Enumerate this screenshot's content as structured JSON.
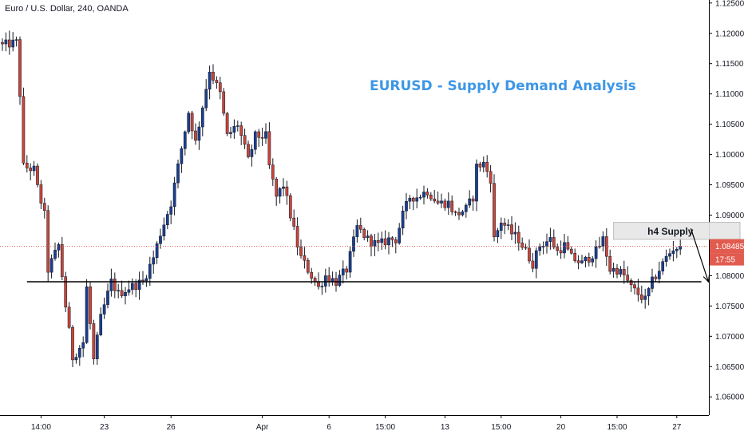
{
  "chart_data": {
    "type": "candlestick",
    "symbol": "Euro / U.S. Dollar, 240, OANDA",
    "title": "EURUSD - Supply Demand Analysis",
    "ylim": [
      1.057,
      1.1255
    ],
    "y_ticks": [
      "1.12500",
      "1.12000",
      "1.11500",
      "1.11000",
      "1.10500",
      "1.10000",
      "1.09500",
      "1.09000",
      "1.08500",
      "1.08000",
      "1.07500",
      "1.07000",
      "1.06500",
      "1.06000"
    ],
    "x_ticks": [
      {
        "label": "14:00",
        "bar": 11
      },
      {
        "label": "23",
        "bar": 29
      },
      {
        "label": "26",
        "bar": 48
      },
      {
        "label": "Apr",
        "bar": 74
      },
      {
        "label": "6",
        "bar": 93
      },
      {
        "label": "15:00",
        "bar": 109
      },
      {
        "label": "13",
        "bar": 126
      },
      {
        "label": "15:00",
        "bar": 142
      },
      {
        "label": "20",
        "bar": 159
      },
      {
        "label": "15:00",
        "bar": 175
      },
      {
        "label": "27",
        "bar": 192
      }
    ],
    "bars_shown": 194,
    "bars_total": 211,
    "anchors": [
      [
        0,
        1.118
      ],
      [
        4,
        1.1185
      ],
      [
        5,
        1.11
      ],
      [
        6,
        1.098
      ],
      [
        9,
        1.0975
      ],
      [
        10,
        1.0945
      ],
      [
        12,
        1.09
      ],
      [
        13,
        1.081
      ],
      [
        16,
        1.085
      ],
      [
        18,
        1.075
      ],
      [
        20,
        1.0665
      ],
      [
        23,
        1.069
      ],
      [
        24,
        1.078
      ],
      [
        26,
        1.066
      ],
      [
        28,
        1.073
      ],
      [
        31,
        1.079
      ],
      [
        33,
        1.077
      ],
      [
        36,
        1.078
      ],
      [
        40,
        1.079
      ],
      [
        43,
        1.083
      ],
      [
        45,
        1.087
      ],
      [
        48,
        1.092
      ],
      [
        51,
        1.101
      ],
      [
        53,
        1.107
      ],
      [
        55,
        1.102
      ],
      [
        57,
        1.108
      ],
      [
        59,
        1.114
      ],
      [
        62,
        1.11
      ],
      [
        64,
        1.103
      ],
      [
        67,
        1.105
      ],
      [
        70,
        1.099
      ],
      [
        72,
        1.103
      ],
      [
        75,
        1.103
      ],
      [
        76,
        1.098
      ],
      [
        78,
        1.093
      ],
      [
        80,
        1.095
      ],
      [
        82,
        1.09
      ],
      [
        84,
        1.085
      ],
      [
        85,
        1.083
      ],
      [
        88,
        1.08
      ],
      [
        90,
        1.078
      ],
      [
        92,
        1.08
      ],
      [
        95,
        1.079
      ],
      [
        98,
        1.081
      ],
      [
        101,
        1.088
      ],
      [
        104,
        1.086
      ],
      [
        107,
        1.085
      ],
      [
        110,
        1.086
      ],
      [
        112,
        1.086
      ],
      [
        114,
        1.09
      ],
      [
        116,
        1.093
      ],
      [
        118,
        1.093
      ],
      [
        121,
        1.094
      ],
      [
        124,
        1.092
      ],
      [
        127,
        1.092
      ],
      [
        129,
        1.09
      ],
      [
        132,
        1.091
      ],
      [
        134,
        1.093
      ],
      [
        135,
        1.098
      ],
      [
        137,
        1.0985
      ],
      [
        139,
        1.096
      ],
      [
        140,
        1.086
      ],
      [
        142,
        1.089
      ],
      [
        145,
        1.087
      ],
      [
        147,
        1.086
      ],
      [
        149,
        1.084
      ],
      [
        151,
        1.082
      ],
      [
        153,
        1.085
      ],
      [
        156,
        1.086
      ],
      [
        158,
        1.084
      ],
      [
        160,
        1.085
      ],
      [
        162,
        1.083
      ],
      [
        165,
        1.082
      ],
      [
        167,
        1.083
      ],
      [
        169,
        1.084
      ],
      [
        171,
        1.086
      ],
      [
        173,
        1.081
      ],
      [
        175,
        1.081
      ],
      [
        177,
        1.08
      ],
      [
        179,
        1.078
      ],
      [
        181,
        1.077
      ],
      [
        183,
        1.076
      ],
      [
        185,
        1.079
      ],
      [
        187,
        1.081
      ],
      [
        189,
        1.083
      ],
      [
        191,
        1.0845
      ],
      [
        193,
        1.0848
      ]
    ],
    "current_price": "1.08485",
    "countdown": "17:55",
    "demand_line": 1.079,
    "supply_zone": {
      "label": "h4 Supply",
      "from_bar": 174,
      "to_bar": 210,
      "top": 1.0888,
      "bottom": 1.086
    },
    "arrow": {
      "from_bar": 196,
      "from_price": 1.0878,
      "to_bar": 201,
      "to_price": 1.079
    },
    "colors": {
      "up": "#1b3f8f",
      "down": "#c9453a",
      "wick": "#131722",
      "price_line": "#e15b4f",
      "demand_line": "#000000",
      "supply_fill": "#e6e6e6",
      "title": "#3d97e6"
    }
  }
}
